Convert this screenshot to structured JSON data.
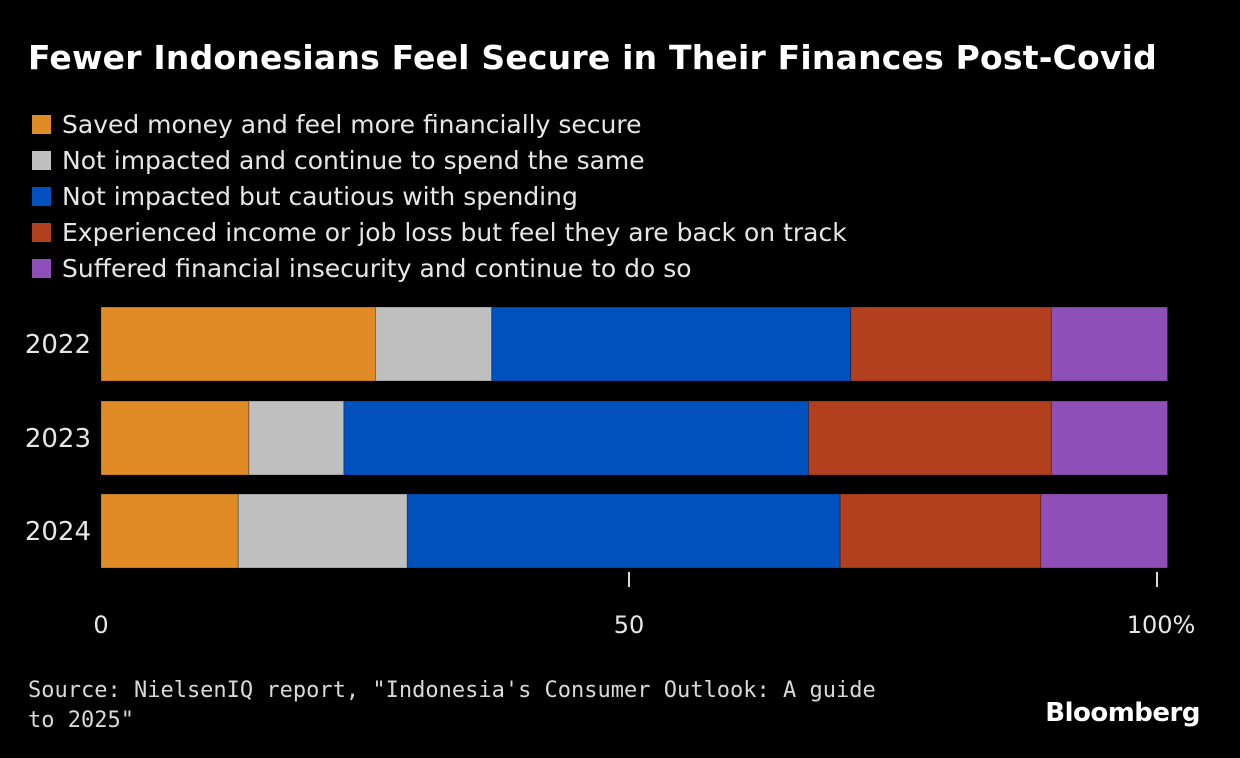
{
  "title": "Fewer Indonesians Feel Secure in Their Finances Post-Covid",
  "colors": {
    "background": "#000000",
    "saved": "#e08b26",
    "not_impacted_same": "#bfbfbf",
    "cautious": "#0050bd",
    "back_on_track": "#b23f1d",
    "insecure": "#8e4fb8"
  },
  "chart_data": {
    "type": "bar",
    "orientation": "horizontal",
    "stacked": true,
    "title": "Fewer Indonesians Feel Secure in Their Finances Post-Covid",
    "categories": [
      "2022",
      "2023",
      "2024"
    ],
    "series": [
      {
        "name": "Saved money and feel more financially secure",
        "color": "#e08b26",
        "values": [
          26,
          14,
          13
        ]
      },
      {
        "name": "Not impacted and continue to spend the same",
        "color": "#bfbfbf",
        "values": [
          11,
          9,
          16
        ]
      },
      {
        "name": "Not impacted but cautious with spending",
        "color": "#0050bd",
        "values": [
          34,
          44,
          41
        ]
      },
      {
        "name": "Experienced income or job loss but feel they are back on track",
        "color": "#b23f1d",
        "values": [
          19,
          23,
          19
        ]
      },
      {
        "name": "Suffered financial insecurity and continue to do so",
        "color": "#8e4fb8",
        "values": [
          11,
          11,
          12
        ]
      }
    ],
    "xlim": [
      0,
      100
    ],
    "x_ticks": [
      "0",
      "50",
      "100%"
    ],
    "x_tick_values": [
      0,
      50,
      100
    ],
    "xlabel": "",
    "ylabel": "",
    "grid": false,
    "legend": "top-left"
  },
  "source": "Source: NielsenIQ report, \"Indonesia's Consumer Outlook: A guide to 2025\"",
  "brand": "Bloomberg"
}
